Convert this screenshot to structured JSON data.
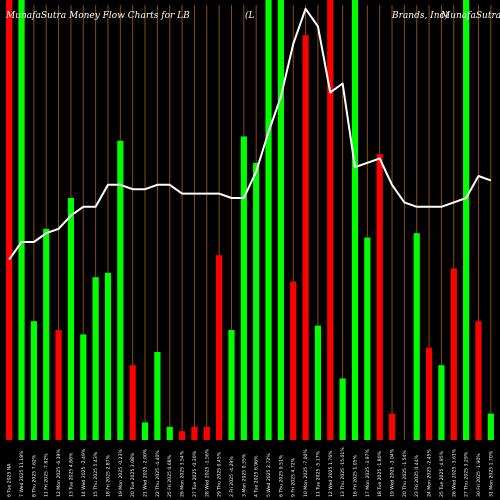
{
  "chart_data": {
    "type": "bar",
    "title": "MunafaSutra  Money Flow  Charts for LB",
    "title_parts": [
      "MunafaSutra  Money Flow  Charts for LB",
      "(L",
      "Brands,  Inc)",
      "MunafaSutra.com"
    ],
    "colors": {
      "background": "#000000",
      "up": "#00ff00",
      "down": "#ff0000",
      "line": "#ffffff",
      "gridline": "#8a4b0a"
    },
    "ylim": [
      0,
      100
    ],
    "categories": [
      "6 Tue 2025 NA",
      "7 Wed 2025 11.18%",
      "8 Thu 2025 7.62%",
      "11 Fri 2025 -7.82%",
      "12 Mon 2025 -6.39%",
      "13 Tue 2025 4.86%",
      "14 Wed 2025 -2.49%",
      "15 Thu 2025 5.43%",
      "18 Fri 2025 2.87%",
      "19 Mon 2025 -0.23%",
      "20 Tue 2025 3.08%",
      "21 Wed 2025 -2.00%",
      "22 Thu 2025 -4.40%",
      "25 Fri 2025 0.68%",
      "26 Mon 2025 3.54%",
      "27 Tue 2025 -0.30%",
      "28 Wed 2025 -1.56%",
      "29 Thu 2025 0.45%",
      "2 Fri 2025 -4.29%",
      "3 Mon 2025 0.35%",
      "4 Tue 2025 6.96%",
      "5 Wed 2025 2.72%",
      "6 Thu 2025 9.51%",
      "9 Fri 2025 4.72%",
      "10 Mon 2025 -7.00%",
      "11 Tue 2025 -5.17%",
      "12 Wed 2025 1.76%",
      "13 Thu 2025 -15.01%",
      "16 Fri 2025 1.05%",
      "17 Mon 2025 -3.97%",
      "18 Tue 2025 -1.80%",
      "19 Wed 2025 -3.04%",
      "20 Thu 2025 -1.54%",
      "23 Fri 2025 0.44%",
      "24 Mon 2025 -2.45%",
      "25 Tue 2025 -4.95%",
      "26 Wed 2025 -3.61%",
      "27 Thu 2025 3.29%",
      "30 Fri 2025 -1.90%",
      "31 Mon 2025 1.70%"
    ],
    "series": [
      {
        "values": [
          100,
          100,
          27,
          48,
          25,
          55,
          24,
          37,
          38,
          68,
          17,
          4,
          20,
          3,
          2,
          3,
          3,
          42,
          25,
          69,
          63,
          100,
          100,
          36,
          92,
          26,
          100,
          14,
          100,
          46,
          65,
          6,
          0,
          47,
          21,
          17,
          39,
          100,
          27,
          6
        ],
        "colors": [
          "red",
          "green",
          "green",
          "green",
          "red",
          "green",
          "green",
          "green",
          "green",
          "green",
          "red",
          "green",
          "green",
          "green",
          "red",
          "red",
          "red",
          "red",
          "green",
          "green",
          "green",
          "green",
          "green",
          "red",
          "red",
          "green",
          "red",
          "green",
          "green",
          "green",
          "red",
          "red",
          "green",
          "green",
          "red",
          "green",
          "red",
          "green",
          "red",
          "green"
        ]
      },
      {
        "values": [
          41,
          45,
          45,
          47,
          48,
          51,
          53,
          53,
          58,
          58,
          57,
          57,
          58,
          58,
          56,
          56,
          56,
          56,
          55,
          55,
          61,
          70,
          78,
          90,
          98,
          94,
          79,
          81,
          62,
          63,
          64,
          58,
          54,
          53,
          53,
          53,
          54,
          55,
          60,
          59
        ]
      }
    ]
  }
}
